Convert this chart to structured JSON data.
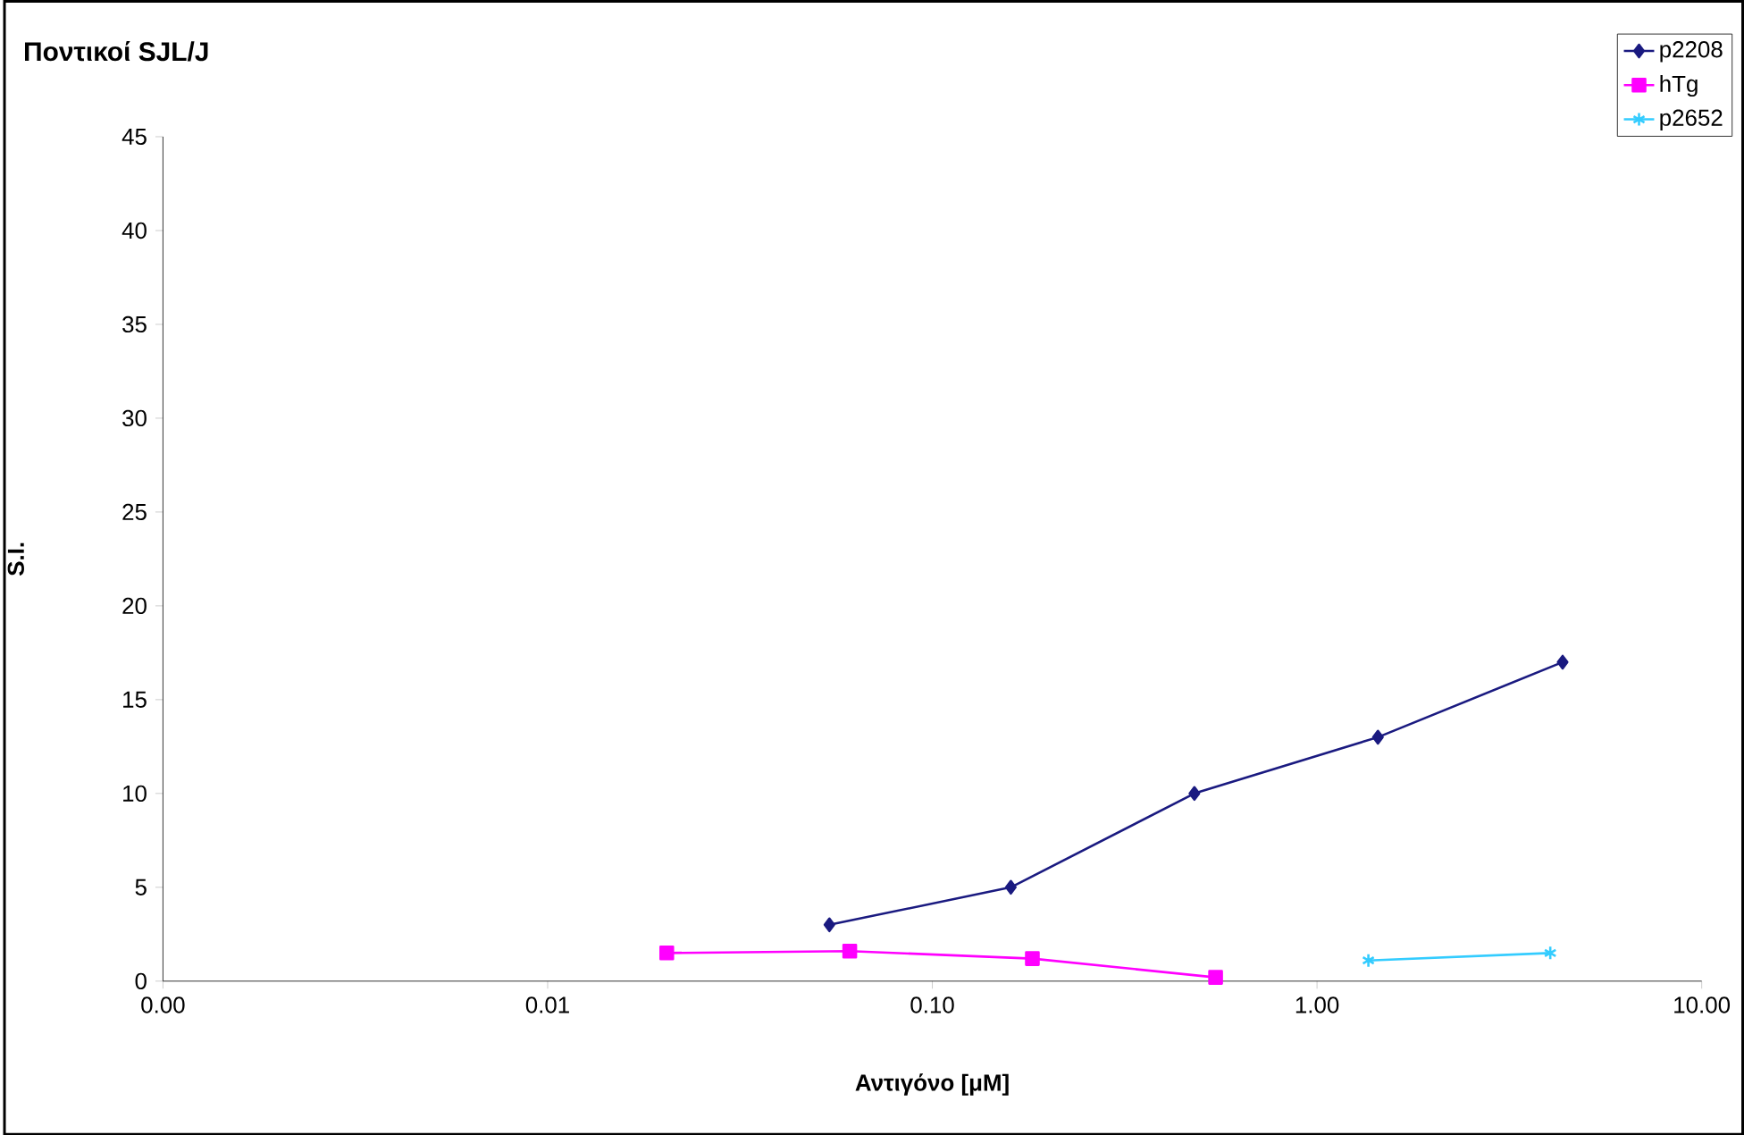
{
  "chart_data": {
    "type": "line",
    "title": "Ποντικοί SJL/J",
    "xlabel": "Αντιγόνο [μM]",
    "ylabel": "S.I.",
    "log": "x",
    "xlim": [
      0.001,
      10
    ],
    "ylim": [
      0,
      45
    ],
    "xticks": [
      {
        "value": 0.001,
        "label": "0.00"
      },
      {
        "value": 0.01,
        "label": "0.01"
      },
      {
        "value": 0.1,
        "label": "0.10"
      },
      {
        "value": 1,
        "label": "1.00"
      },
      {
        "value": 10,
        "label": "10.00"
      }
    ],
    "yticks": [
      0,
      5,
      10,
      15,
      20,
      25,
      30,
      35,
      40,
      45
    ],
    "legend": "top right",
    "series": [
      {
        "name": "p2208",
        "color": "#1a1a80",
        "marker": "diamond",
        "x": [
          0.054,
          0.16,
          0.48,
          1.44,
          4.35
        ],
        "values": [
          3,
          5,
          10,
          13,
          17
        ]
      },
      {
        "name": "hTg",
        "color": "#ff00ff",
        "marker": "square",
        "x": [
          0.0204,
          0.061,
          0.182,
          0.545
        ],
        "values": [
          1.5,
          1.6,
          1.2,
          0.2
        ]
      },
      {
        "name": "p2652",
        "color": "#33ccff",
        "marker": "cross",
        "x": [
          1.36,
          4.04
        ],
        "values": [
          1.1,
          1.5
        ]
      }
    ]
  }
}
